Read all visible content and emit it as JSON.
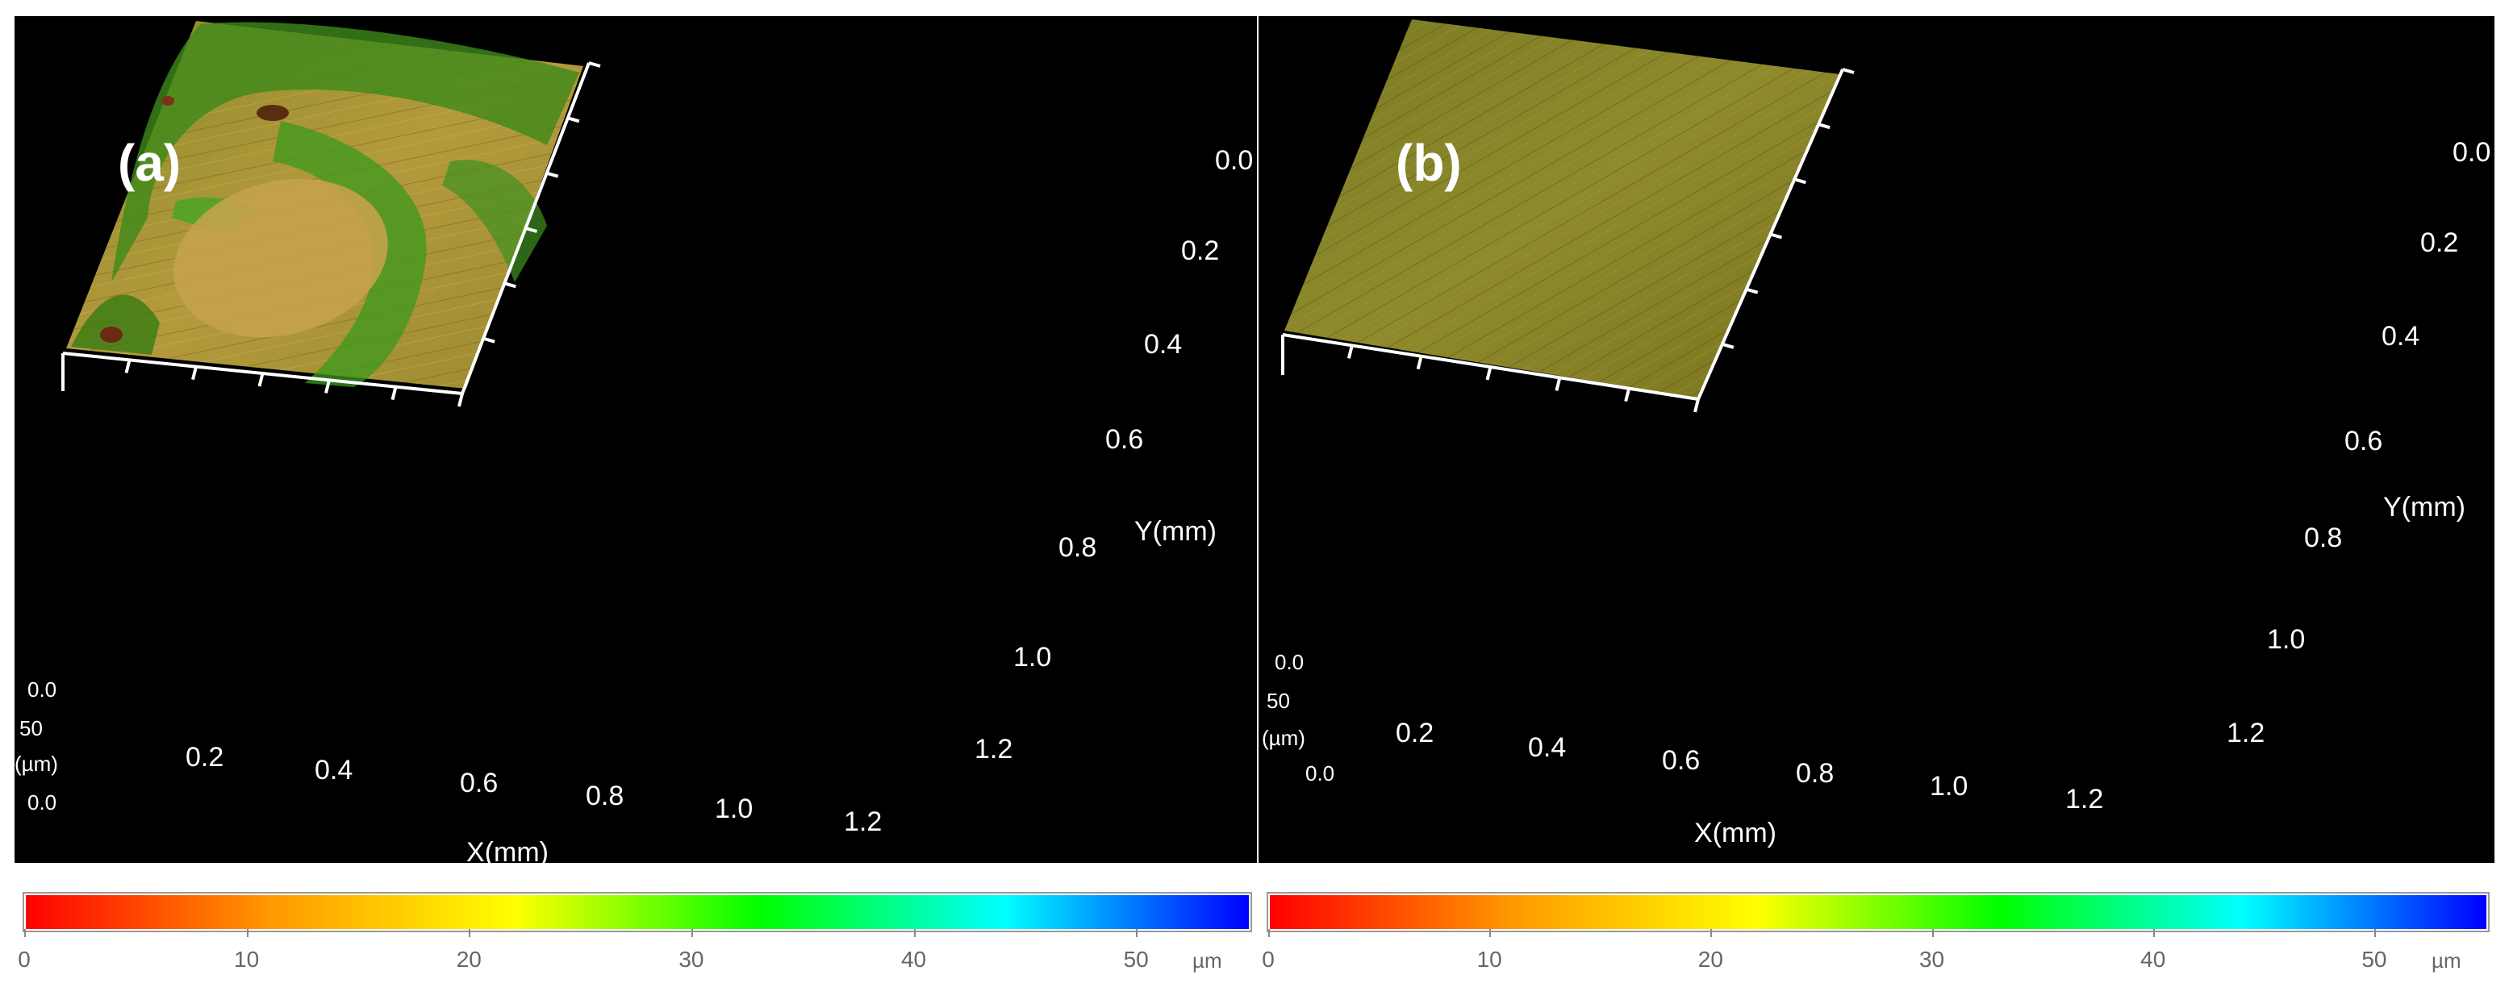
{
  "panels": [
    {
      "label": "(a)",
      "x_ticks": [
        "0.2",
        "0.4",
        "0.6",
        "0.8",
        "1.0",
        "1.2"
      ],
      "y_ticks": [
        "0.0",
        "0.2",
        "0.4",
        "0.6",
        "0.8",
        "1.0",
        "1.2"
      ],
      "x_axis_label": "X(mm)",
      "y_axis_label": "Y(mm)",
      "z_ticks": [
        "0.0",
        "50",
        "0.0"
      ],
      "z_unit": "(µm)"
    },
    {
      "label": "(b)",
      "x_ticks": [
        "0.2",
        "0.4",
        "0.6",
        "0.8",
        "1.0",
        "1.2"
      ],
      "y_ticks": [
        "0.0",
        "0.2",
        "0.4",
        "0.6",
        "0.8",
        "1.0",
        "1.2"
      ],
      "x_axis_label": "X(mm)",
      "y_axis_label": "Y(mm)",
      "z_ticks": [
        "0.0",
        "50",
        "0.0"
      ],
      "z_unit": "(µm)"
    }
  ],
  "colorbar": {
    "ticks": [
      "0",
      "10",
      "20",
      "30",
      "40",
      "50"
    ],
    "unit": "µm",
    "range": [
      0,
      55
    ],
    "colors": [
      "#ff0000",
      "#ff9900",
      "#ffff00",
      "#00ff00",
      "#00ffff",
      "#0000ff"
    ]
  }
}
